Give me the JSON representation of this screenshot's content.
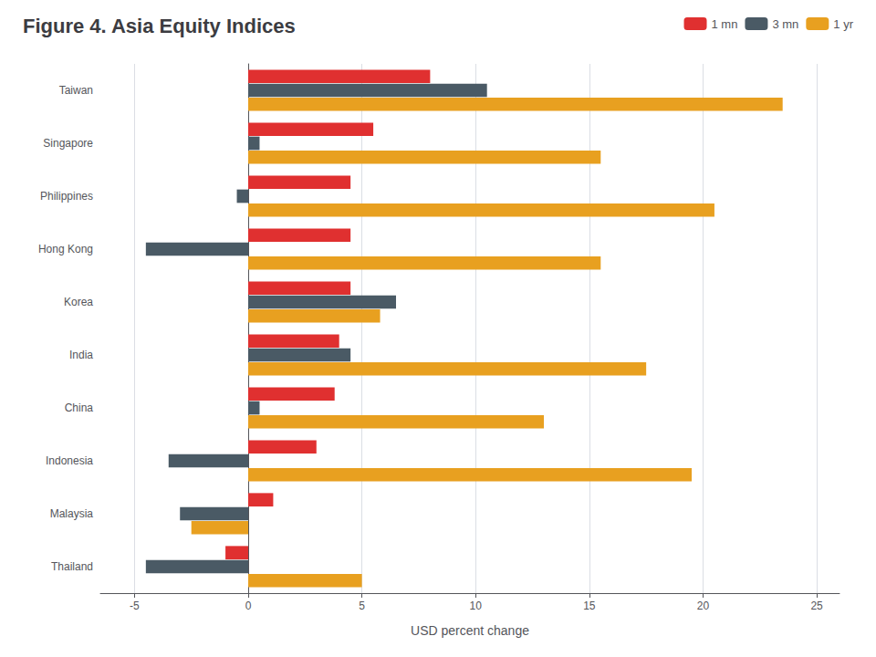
{
  "chart_data": {
    "type": "bar",
    "orientation": "horizontal",
    "title": "Figure 4. Asia Equity Indices",
    "xlabel": "USD percent change",
    "categories": [
      "Taiwan",
      "Singapore",
      "Philippines",
      "Hong Kong",
      "Korea",
      "India",
      "China",
      "Indonesia",
      "Malaysia",
      "Thailand"
    ],
    "series": [
      {
        "name": "1 mn",
        "color": "#e03030",
        "values": [
          8.0,
          5.5,
          4.5,
          4.5,
          4.5,
          4.0,
          3.8,
          3.0,
          1.1,
          -1.0
        ]
      },
      {
        "name": "3 mn",
        "color": "#4a5a65",
        "values": [
          10.5,
          0.5,
          -0.5,
          -4.5,
          6.5,
          4.5,
          0.5,
          -3.5,
          -3.0,
          -4.5
        ]
      },
      {
        "name": "1 yr",
        "color": "#e8a020",
        "values": [
          23.5,
          15.5,
          20.5,
          15.5,
          5.8,
          17.5,
          13.0,
          19.5,
          -2.5,
          5.0
        ]
      }
    ],
    "xlim": [
      -6.5,
      26
    ],
    "xticks": [
      -5,
      0,
      5,
      10,
      15,
      20,
      25
    ],
    "grid": true,
    "legend": "upper right"
  }
}
